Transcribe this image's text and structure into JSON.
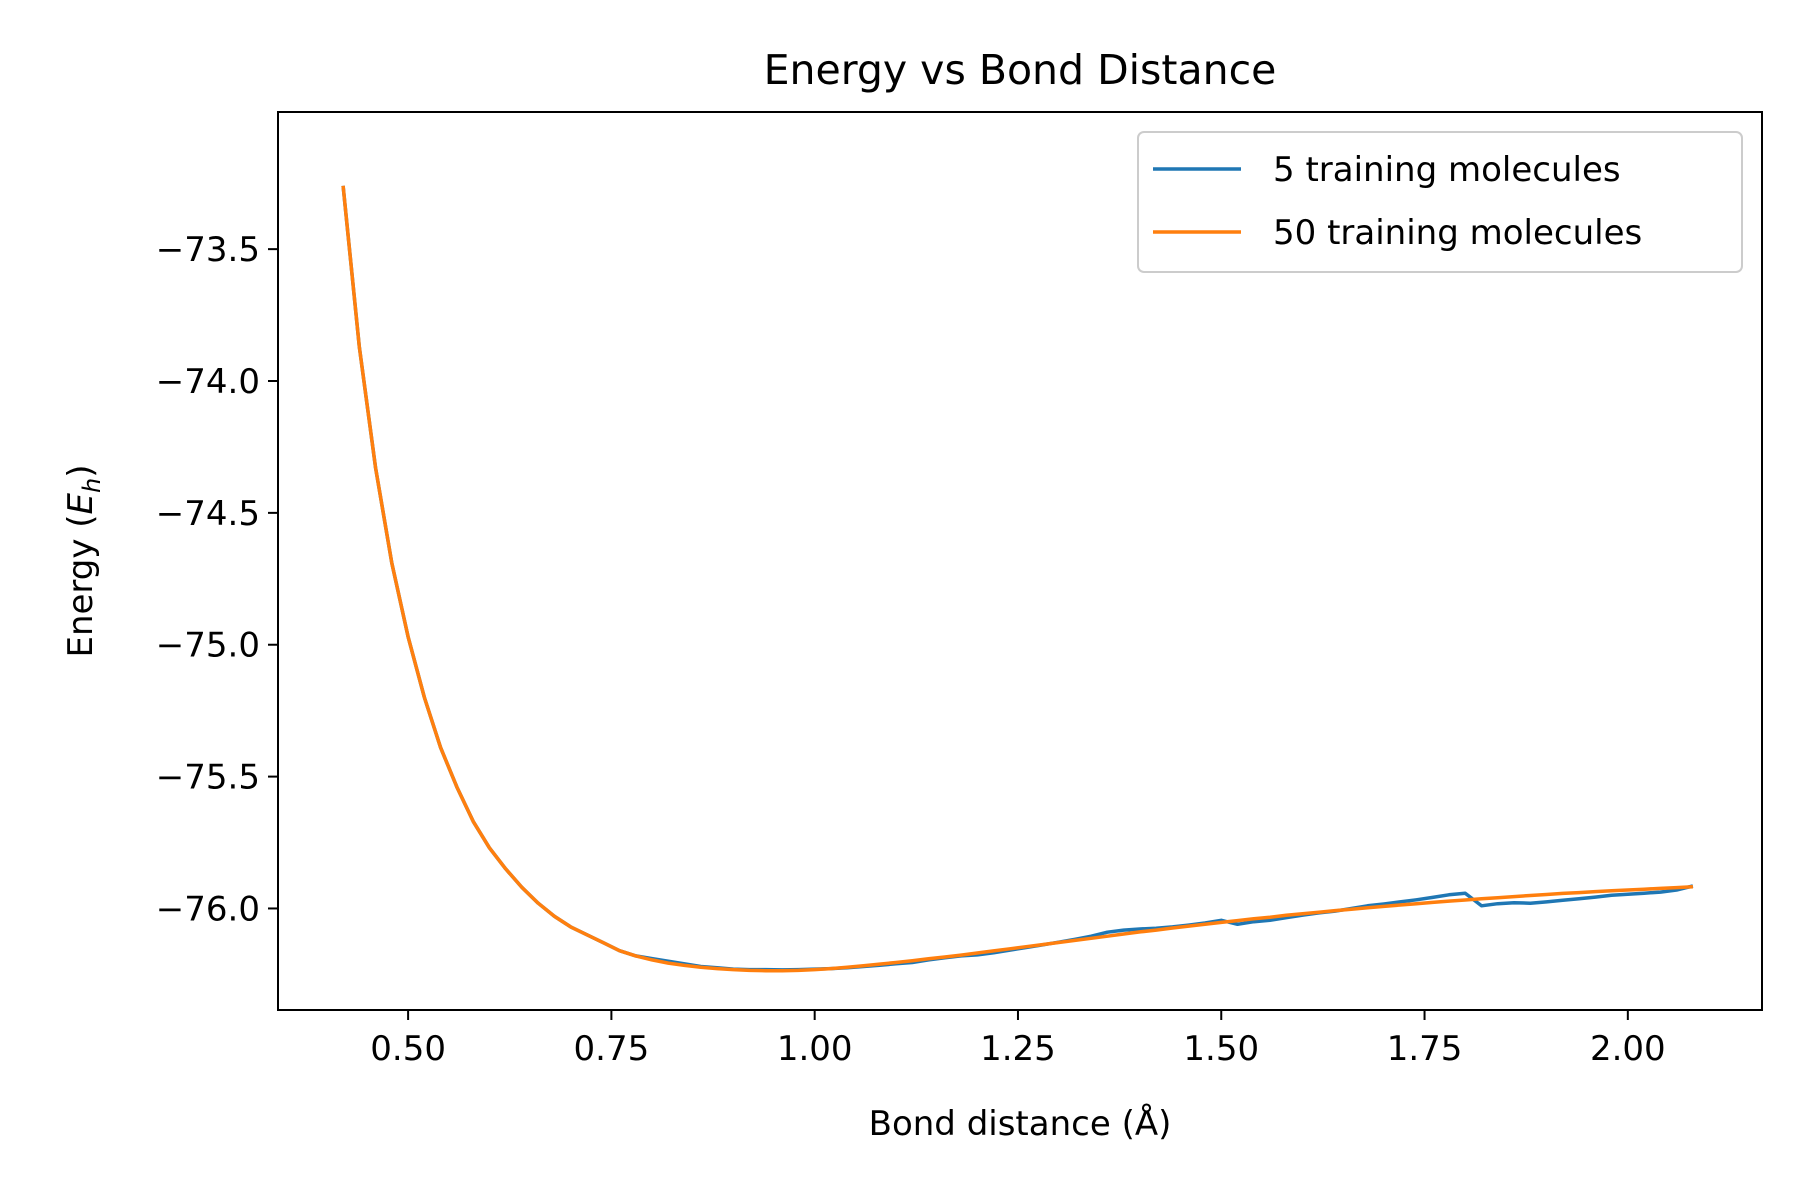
{
  "chart_data": {
    "type": "line",
    "title": "Energy vs Bond Distance",
    "xlabel": "Bond distance (Å)",
    "ylabel": "Energy (Eh)",
    "ylabel_parts": {
      "main": "Energy (",
      "symbol": "E",
      "subscript": "h",
      "close": ")"
    },
    "xlim": [
      0.34,
      2.165
    ],
    "ylim": [
      -76.385,
      -72.98
    ],
    "xticks": [
      0.5,
      0.75,
      1.0,
      1.25,
      1.5,
      1.75,
      2.0
    ],
    "xtick_labels": [
      "0.50",
      "0.75",
      "1.00",
      "1.25",
      "1.50",
      "1.75",
      "2.00"
    ],
    "yticks": [
      -73.5,
      -74.0,
      -74.5,
      -75.0,
      -75.5,
      -76.0
    ],
    "ytick_labels": [
      "−73.5",
      "−74.0",
      "−74.5",
      "−75.0",
      "−75.5",
      "−76.0"
    ],
    "grid": false,
    "legend_position": "top-right",
    "x": [
      0.42,
      0.44,
      0.46,
      0.48,
      0.5,
      0.52,
      0.54,
      0.56,
      0.58,
      0.6,
      0.62,
      0.64,
      0.66,
      0.68,
      0.7,
      0.72,
      0.74,
      0.76,
      0.78,
      0.8,
      0.82,
      0.84,
      0.86,
      0.88,
      0.9,
      0.92,
      0.94,
      0.96,
      0.98,
      1.0,
      1.02,
      1.04,
      1.06,
      1.08,
      1.1,
      1.12,
      1.14,
      1.16,
      1.18,
      1.2,
      1.22,
      1.24,
      1.26,
      1.28,
      1.3,
      1.32,
      1.34,
      1.36,
      1.38,
      1.4,
      1.42,
      1.44,
      1.46,
      1.48,
      1.5,
      1.52,
      1.54,
      1.56,
      1.58,
      1.6,
      1.62,
      1.64,
      1.66,
      1.68,
      1.7,
      1.72,
      1.74,
      1.76,
      1.78,
      1.8,
      1.82,
      1.84,
      1.86,
      1.88,
      1.9,
      1.92,
      1.94,
      1.96,
      1.98,
      2.0,
      2.02,
      2.04,
      2.06,
      2.08
    ],
    "series": [
      {
        "name": "5 training molecules",
        "color": "#1f77b4",
        "values": [
          -73.26,
          -73.87,
          -74.33,
          -74.69,
          -74.97,
          -75.2,
          -75.39,
          -75.54,
          -75.67,
          -75.77,
          -75.85,
          -75.92,
          -75.98,
          -76.03,
          -76.07,
          -76.1,
          -76.13,
          -76.16,
          -76.18,
          -76.19,
          -76.2,
          -76.21,
          -76.22,
          -76.225,
          -76.23,
          -76.232,
          -76.232,
          -76.233,
          -76.232,
          -76.23,
          -76.228,
          -76.225,
          -76.22,
          -76.215,
          -76.21,
          -76.205,
          -76.195,
          -76.187,
          -76.18,
          -76.176,
          -76.168,
          -76.158,
          -76.148,
          -76.138,
          -76.128,
          -76.117,
          -76.105,
          -76.09,
          -76.082,
          -76.078,
          -76.075,
          -76.07,
          -76.063,
          -76.055,
          -76.045,
          -76.06,
          -76.05,
          -76.045,
          -76.035,
          -76.025,
          -76.017,
          -76.01,
          -76.0,
          -75.99,
          -75.983,
          -75.975,
          -75.967,
          -75.958,
          -75.948,
          -75.942,
          -75.99,
          -75.982,
          -75.978,
          -75.98,
          -75.975,
          -75.969,
          -75.963,
          -75.957,
          -75.95,
          -75.946,
          -75.942,
          -75.938,
          -75.93,
          -75.915
        ]
      },
      {
        "name": "50 training molecules",
        "color": "#ff7f0e",
        "values": [
          -73.26,
          -73.87,
          -74.33,
          -74.69,
          -74.97,
          -75.2,
          -75.39,
          -75.54,
          -75.67,
          -75.77,
          -75.85,
          -75.92,
          -75.98,
          -76.03,
          -76.07,
          -76.1,
          -76.13,
          -76.16,
          -76.18,
          -76.195,
          -76.207,
          -76.216,
          -76.223,
          -76.228,
          -76.232,
          -76.235,
          -76.236,
          -76.236,
          -76.235,
          -76.232,
          -76.228,
          -76.223,
          -76.217,
          -76.211,
          -76.205,
          -76.198,
          -76.191,
          -76.184,
          -76.177,
          -76.169,
          -76.161,
          -76.153,
          -76.145,
          -76.137,
          -76.129,
          -76.121,
          -76.113,
          -76.105,
          -76.097,
          -76.089,
          -76.082,
          -76.074,
          -76.067,
          -76.06,
          -76.053,
          -76.046,
          -76.039,
          -76.033,
          -76.026,
          -76.02,
          -76.014,
          -76.008,
          -76.003,
          -75.997,
          -75.992,
          -75.987,
          -75.982,
          -75.977,
          -75.972,
          -75.968,
          -75.963,
          -75.959,
          -75.955,
          -75.951,
          -75.947,
          -75.943,
          -75.94,
          -75.936,
          -75.933,
          -75.93,
          -75.927,
          -75.924,
          -75.921,
          -75.918
        ]
      }
    ]
  }
}
